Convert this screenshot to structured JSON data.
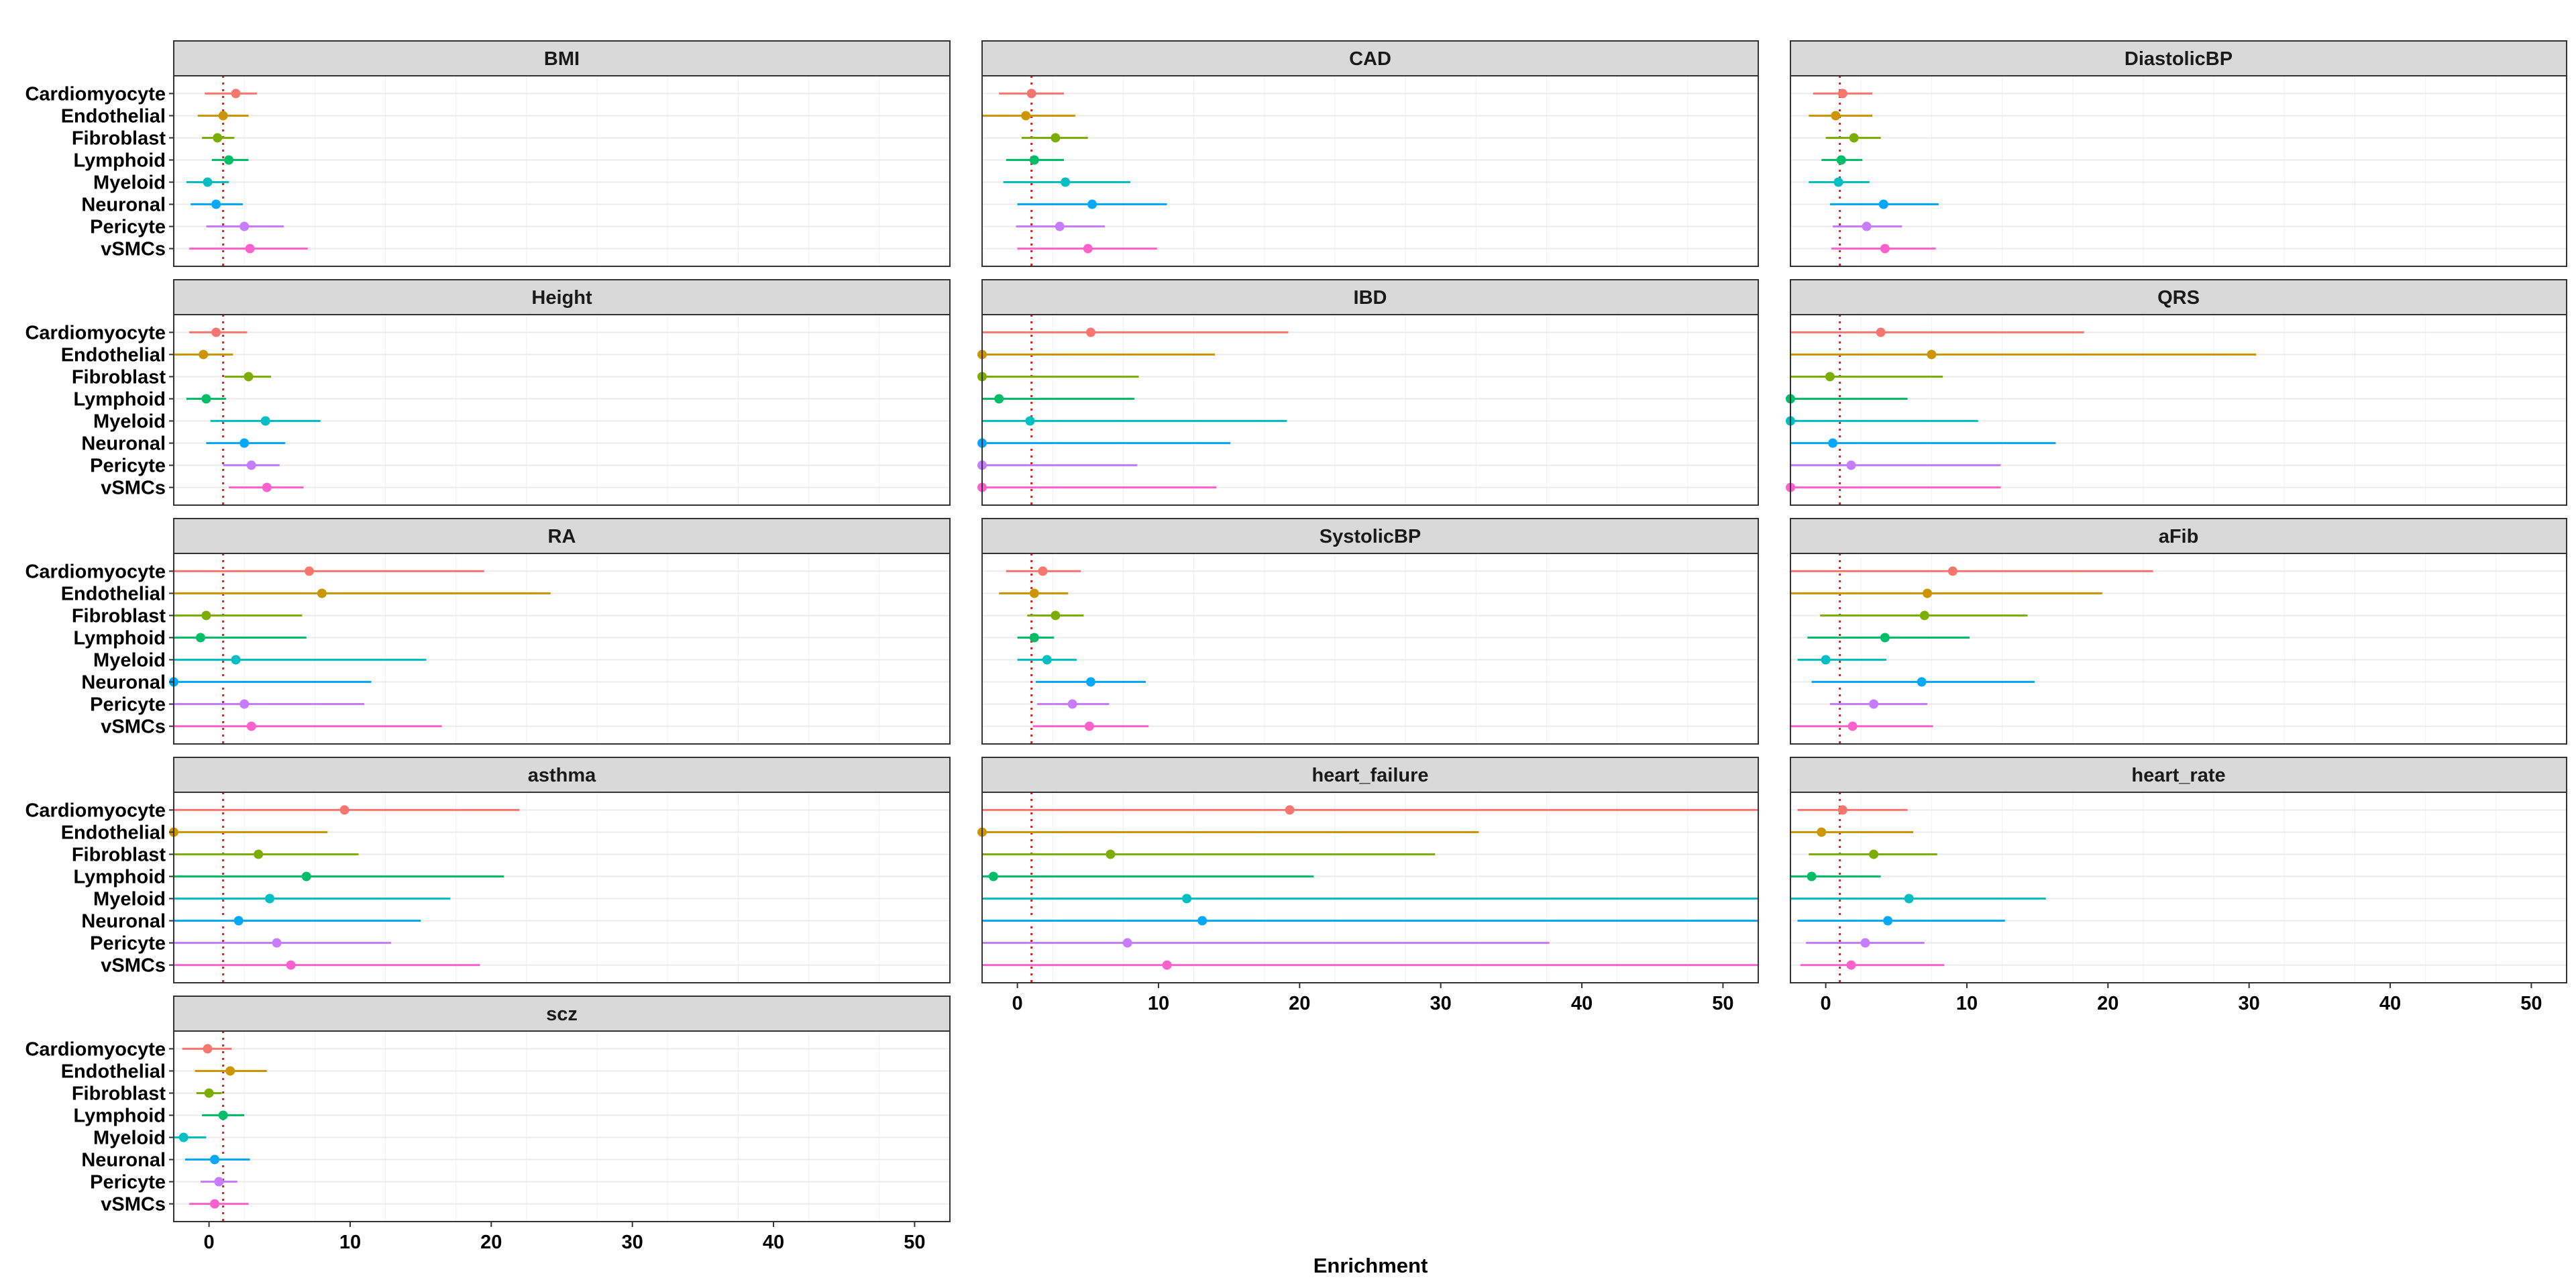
{
  "colors": {
    "Cardiomyocyte": "#F8766D",
    "Endothelial": "#CD9600",
    "Fibroblast": "#7CAE00",
    "Lymphoid": "#00BE67",
    "Myeloid": "#00BFC4",
    "Neuronal": "#00A9FF",
    "Pericyte": "#C77CFF",
    "vSMCs": "#FF61CC",
    "reference_line": "#E41A1C"
  },
  "chart_data": {
    "type": "forest",
    "xlabel": "Enrichment",
    "xlim": [
      -2.5,
      52.5
    ],
    "xticks": [
      0,
      10,
      20,
      30,
      40,
      50
    ],
    "reference_x": 1,
    "cell_types": [
      "Cardiomyocyte",
      "Endothelial",
      "Fibroblast",
      "Lymphoid",
      "Myeloid",
      "Neuronal",
      "Pericyte",
      "vSMCs"
    ],
    "panels": [
      {
        "title": "BMI",
        "points": [
          {
            "est": 1.9,
            "lo": -0.3,
            "hi": 3.4
          },
          {
            "est": 1.0,
            "lo": -0.8,
            "hi": 2.8
          },
          {
            "est": 0.6,
            "lo": -0.5,
            "hi": 1.8
          },
          {
            "est": 1.4,
            "lo": 0.2,
            "hi": 2.8
          },
          {
            "est": -0.1,
            "lo": -1.6,
            "hi": 1.4
          },
          {
            "est": 0.5,
            "lo": -1.3,
            "hi": 2.4
          },
          {
            "est": 2.5,
            "lo": -0.2,
            "hi": 5.3
          },
          {
            "est": 2.9,
            "lo": -1.4,
            "hi": 7.0
          }
        ]
      },
      {
        "title": "CAD",
        "points": [
          {
            "est": 1.0,
            "lo": -1.3,
            "hi": 3.3
          },
          {
            "est": 0.6,
            "lo": -2.5,
            "hi": 4.1
          },
          {
            "est": 2.7,
            "lo": 0.3,
            "hi": 5.0
          },
          {
            "est": 1.2,
            "lo": -0.8,
            "hi": 3.3
          },
          {
            "est": 3.4,
            "lo": -1.0,
            "hi": 8.0
          },
          {
            "est": 5.3,
            "lo": 0.0,
            "hi": 10.6
          },
          {
            "est": 3.0,
            "lo": -0.1,
            "hi": 6.2
          },
          {
            "est": 5.0,
            "lo": 0.0,
            "hi": 9.9
          }
        ]
      },
      {
        "title": "DiastolicBP",
        "points": [
          {
            "est": 1.2,
            "lo": -0.9,
            "hi": 3.3
          },
          {
            "est": 0.7,
            "lo": -1.2,
            "hi": 3.3
          },
          {
            "est": 2.0,
            "lo": 0.0,
            "hi": 3.9
          },
          {
            "est": 1.1,
            "lo": -0.3,
            "hi": 2.6
          },
          {
            "est": 0.9,
            "lo": -1.2,
            "hi": 3.1
          },
          {
            "est": 4.1,
            "lo": 0.3,
            "hi": 8.0
          },
          {
            "est": 2.9,
            "lo": 0.5,
            "hi": 5.4
          },
          {
            "est": 4.2,
            "lo": 0.4,
            "hi": 7.8
          }
        ]
      },
      {
        "title": "Height",
        "points": [
          {
            "est": 0.5,
            "lo": -1.4,
            "hi": 2.7
          },
          {
            "est": -0.4,
            "lo": -2.5,
            "hi": 1.7
          },
          {
            "est": 2.8,
            "lo": 1.1,
            "hi": 4.4
          },
          {
            "est": -0.2,
            "lo": -1.6,
            "hi": 1.2
          },
          {
            "est": 4.0,
            "lo": 0.1,
            "hi": 7.9
          },
          {
            "est": 2.5,
            "lo": -0.2,
            "hi": 5.4
          },
          {
            "est": 3.0,
            "lo": 1.0,
            "hi": 5.0
          },
          {
            "est": 4.1,
            "lo": 1.4,
            "hi": 6.7
          }
        ]
      },
      {
        "title": "IBD",
        "points": [
          {
            "est": 5.2,
            "lo": -2.5,
            "hi": 19.2
          },
          {
            "est": -2.5,
            "lo": -2.5,
            "hi": 14.0
          },
          {
            "est": -2.5,
            "lo": -2.5,
            "hi": 8.6
          },
          {
            "est": -1.3,
            "lo": -2.5,
            "hi": 8.3
          },
          {
            "est": 0.9,
            "lo": -2.5,
            "hi": 19.1
          },
          {
            "est": -2.5,
            "lo": -2.5,
            "hi": 15.1
          },
          {
            "est": -2.5,
            "lo": -2.5,
            "hi": 8.5
          },
          {
            "est": -2.5,
            "lo": -2.5,
            "hi": 14.1
          }
        ]
      },
      {
        "title": "QRS",
        "points": [
          {
            "est": 3.9,
            "lo": -2.5,
            "hi": 18.3
          },
          {
            "est": 7.5,
            "lo": -2.5,
            "hi": 30.5
          },
          {
            "est": 0.3,
            "lo": -2.5,
            "hi": 8.3
          },
          {
            "est": -2.5,
            "lo": -2.5,
            "hi": 5.8
          },
          {
            "est": -2.5,
            "lo": -2.5,
            "hi": 10.8
          },
          {
            "est": 0.5,
            "lo": -2.5,
            "hi": 16.3
          },
          {
            "est": 1.8,
            "lo": -2.5,
            "hi": 12.4
          },
          {
            "est": -2.5,
            "lo": -2.5,
            "hi": 12.4
          }
        ]
      },
      {
        "title": "RA",
        "points": [
          {
            "est": 7.1,
            "lo": -2.5,
            "hi": 19.5
          },
          {
            "est": 8.0,
            "lo": -2.5,
            "hi": 24.2
          },
          {
            "est": -0.2,
            "lo": -2.5,
            "hi": 6.6
          },
          {
            "est": -0.6,
            "lo": -2.5,
            "hi": 6.9
          },
          {
            "est": 1.9,
            "lo": -2.5,
            "hi": 15.4
          },
          {
            "est": -2.5,
            "lo": -2.5,
            "hi": 11.5
          },
          {
            "est": 2.5,
            "lo": -2.5,
            "hi": 11.0
          },
          {
            "est": 3.0,
            "lo": -2.5,
            "hi": 16.5
          }
        ]
      },
      {
        "title": "SystolicBP",
        "points": [
          {
            "est": 1.8,
            "lo": -0.8,
            "hi": 4.5
          },
          {
            "est": 1.2,
            "lo": -1.3,
            "hi": 3.6
          },
          {
            "est": 2.7,
            "lo": 0.7,
            "hi": 4.7
          },
          {
            "est": 1.2,
            "lo": 0.0,
            "hi": 2.6
          },
          {
            "est": 2.1,
            "lo": 0.0,
            "hi": 4.2
          },
          {
            "est": 5.2,
            "lo": 1.3,
            "hi": 9.1
          },
          {
            "est": 3.9,
            "lo": 1.4,
            "hi": 6.5
          },
          {
            "est": 5.1,
            "lo": 1.1,
            "hi": 9.3
          }
        ]
      },
      {
        "title": "aFib",
        "points": [
          {
            "est": 9.0,
            "lo": -2.5,
            "hi": 23.2
          },
          {
            "est": 7.2,
            "lo": -2.5,
            "hi": 19.6
          },
          {
            "est": 7.0,
            "lo": -0.4,
            "hi": 14.3
          },
          {
            "est": 4.2,
            "lo": -1.3,
            "hi": 10.2
          },
          {
            "est": 0.0,
            "lo": -2.0,
            "hi": 4.3
          },
          {
            "est": 6.8,
            "lo": -1.0,
            "hi": 14.8
          },
          {
            "est": 3.4,
            "lo": 0.3,
            "hi": 7.2
          },
          {
            "est": 1.9,
            "lo": -2.5,
            "hi": 7.6
          }
        ]
      },
      {
        "title": "asthma",
        "points": [
          {
            "est": 9.6,
            "lo": -2.5,
            "hi": 22.0
          },
          {
            "est": -2.5,
            "lo": -2.5,
            "hi": 8.4
          },
          {
            "est": 3.5,
            "lo": -2.5,
            "hi": 10.6
          },
          {
            "est": 6.9,
            "lo": -2.5,
            "hi": 20.9
          },
          {
            "est": 4.3,
            "lo": -2.5,
            "hi": 17.1
          },
          {
            "est": 2.1,
            "lo": -2.5,
            "hi": 15.0
          },
          {
            "est": 4.8,
            "lo": -2.5,
            "hi": 12.9
          },
          {
            "est": 5.8,
            "lo": -2.5,
            "hi": 19.2
          }
        ]
      },
      {
        "title": "heart_failure",
        "points": [
          {
            "est": 19.3,
            "lo": -2.5,
            "hi": 52.5
          },
          {
            "est": -2.5,
            "lo": -2.5,
            "hi": 32.7
          },
          {
            "est": 6.6,
            "lo": -2.5,
            "hi": 29.6
          },
          {
            "est": -1.7,
            "lo": -2.5,
            "hi": 21.0
          },
          {
            "est": 12.0,
            "lo": -2.5,
            "hi": 52.5
          },
          {
            "est": 13.1,
            "lo": -2.5,
            "hi": 52.5
          },
          {
            "est": 7.8,
            "lo": -2.5,
            "hi": 37.7
          },
          {
            "est": 10.6,
            "lo": -2.5,
            "hi": 52.5
          }
        ]
      },
      {
        "title": "heart_rate",
        "points": [
          {
            "est": 1.2,
            "lo": -2.0,
            "hi": 5.8
          },
          {
            "est": -0.3,
            "lo": -2.5,
            "hi": 6.2
          },
          {
            "est": 3.4,
            "lo": -1.2,
            "hi": 7.9
          },
          {
            "est": -1.0,
            "lo": -2.5,
            "hi": 3.9
          },
          {
            "est": 5.9,
            "lo": -2.5,
            "hi": 15.6
          },
          {
            "est": 4.4,
            "lo": -2.0,
            "hi": 12.7
          },
          {
            "est": 2.8,
            "lo": -1.4,
            "hi": 7.0
          },
          {
            "est": 1.8,
            "lo": -1.8,
            "hi": 8.4
          }
        ]
      },
      {
        "title": "scz",
        "points": [
          {
            "est": -0.1,
            "lo": -1.9,
            "hi": 1.6
          },
          {
            "est": 1.5,
            "lo": -1.0,
            "hi": 4.1
          },
          {
            "est": 0.0,
            "lo": -0.9,
            "hi": 0.9
          },
          {
            "est": 1.0,
            "lo": -0.5,
            "hi": 2.5
          },
          {
            "est": -1.8,
            "lo": -2.5,
            "hi": -0.2
          },
          {
            "est": 0.4,
            "lo": -1.7,
            "hi": 2.9
          },
          {
            "est": 0.7,
            "lo": -0.6,
            "hi": 2.0
          },
          {
            "est": 0.4,
            "lo": -1.4,
            "hi": 2.8
          }
        ]
      }
    ]
  }
}
